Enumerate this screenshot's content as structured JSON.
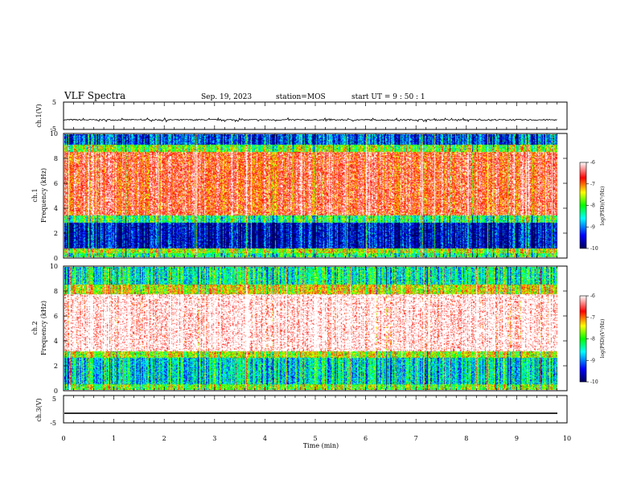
{
  "header": {
    "title": "VLF Spectra",
    "date": "Sep. 19, 2023",
    "station": "station=MOS",
    "start": "start  UT =   9 : 50 : 1"
  },
  "chart_data": [
    {
      "id": "ch1-waveform",
      "type": "line",
      "ylabel": "ch.1(V)",
      "y_ticks": [
        "5",
        "-5"
      ],
      "ylim": [
        -5,
        5
      ],
      "level_v": -1.5,
      "xlim": [
        0,
        10
      ]
    },
    {
      "id": "ch1-spectrogram",
      "type": "heatmap",
      "ylabel_top": "ch.1",
      "ylabel": "Frequency (kHz)",
      "ylim": [
        0,
        10
      ],
      "y_ticks": [
        "0",
        "2",
        "4",
        "6",
        "8",
        "10"
      ],
      "xlim": [
        0,
        9.8
      ],
      "bands": [
        {
          "from_khz": 0,
          "to_khz": 0.3,
          "level": 0.45
        },
        {
          "from_khz": 0.3,
          "to_khz": 0.7,
          "level": 0.6
        },
        {
          "from_khz": 0.7,
          "to_khz": 2.8,
          "level": 0.1
        },
        {
          "from_khz": 2.8,
          "to_khz": 3.4,
          "level": 0.45
        },
        {
          "from_khz": 3.4,
          "to_khz": 8.6,
          "level": 0.85
        },
        {
          "from_khz": 8.6,
          "to_khz": 9.2,
          "level": 0.55
        },
        {
          "from_khz": 9.2,
          "to_khz": 10,
          "level": 0.2
        }
      ],
      "colorbar": {
        "ticks": [
          "-6",
          "-7",
          "-8",
          "-9",
          "-10"
        ],
        "label": "log(PSD)(V²/Hz)",
        "range": [
          -10,
          -6
        ]
      }
    },
    {
      "id": "ch2-spectrogram",
      "type": "heatmap",
      "ylabel_top": "ch.2",
      "ylabel": "Frequency (kHz)",
      "ylim": [
        0,
        10
      ],
      "y_ticks": [
        "0",
        "2",
        "4",
        "6",
        "8",
        "10"
      ],
      "xlim": [
        0,
        9.8
      ],
      "bands": [
        {
          "from_khz": 0,
          "to_khz": 0.4,
          "level": 0.55
        },
        {
          "from_khz": 0.4,
          "to_khz": 2.6,
          "level": 0.35
        },
        {
          "from_khz": 2.6,
          "to_khz": 3.1,
          "level": 0.6
        },
        {
          "from_khz": 3.1,
          "to_khz": 7.8,
          "level": 0.97
        },
        {
          "from_khz": 7.8,
          "to_khz": 8.6,
          "level": 0.65
        },
        {
          "from_khz": 8.6,
          "to_khz": 10,
          "level": 0.4
        }
      ],
      "colorbar": {
        "ticks": [
          "-6",
          "-7",
          "-8",
          "-9",
          "-10"
        ],
        "label": "log(PSD)(V²/Hz)",
        "range": [
          -10,
          -6
        ]
      }
    },
    {
      "id": "ch3-waveform",
      "type": "line",
      "ylabel": "ch.3(V)",
      "y_ticks": [
        "5",
        "-5"
      ],
      "ylim": [
        -5,
        5
      ],
      "level_v": -1.5,
      "xlim": [
        0,
        10
      ],
      "xlabel": "Time (min)",
      "x_ticks": [
        "0",
        "1",
        "2",
        "3",
        "4",
        "5",
        "6",
        "7",
        "8",
        "9",
        "10"
      ]
    }
  ],
  "colors": {
    "colormap": [
      "#00005a",
      "#0000ff",
      "#00ffff",
      "#00ff00",
      "#ffff00",
      "#ff0000",
      "#ffffff"
    ]
  }
}
